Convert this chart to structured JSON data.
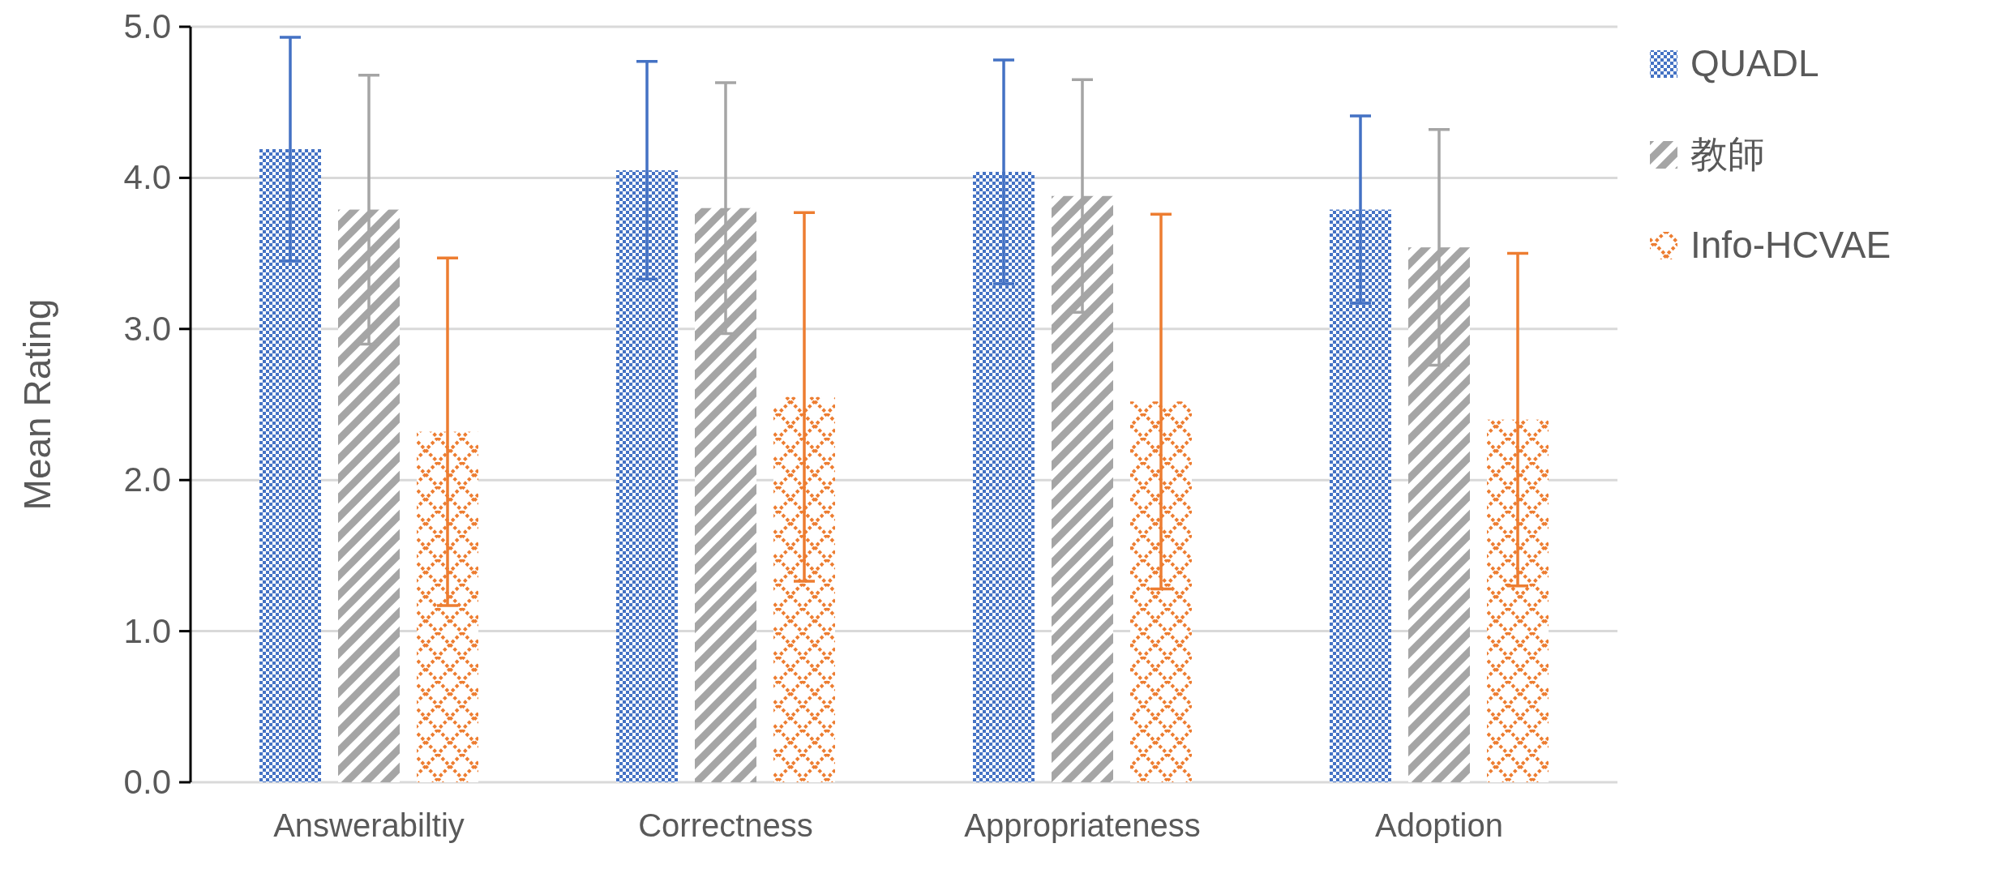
{
  "chart_data": {
    "type": "bar",
    "ylabel": "Mean Rating",
    "categories": [
      "Answerabiltiy",
      "Correctness",
      "Appropriateness",
      "Adoption"
    ],
    "series": [
      {
        "name": "QUADL",
        "color": "#4472c4",
        "values": [
          4.19,
          4.05,
          4.04,
          3.79
        ],
        "errors": [
          0.74,
          0.72,
          0.74,
          0.62
        ]
      },
      {
        "name": "教師",
        "color": "#a5a5a5",
        "values": [
          3.79,
          3.8,
          3.88,
          3.54
        ],
        "errors": [
          0.89,
          0.83,
          0.77,
          0.78
        ]
      },
      {
        "name": "Info-HCVAE",
        "color": "#ed7d31",
        "values": [
          2.32,
          2.55,
          2.52,
          2.4
        ],
        "errors": [
          1.15,
          1.22,
          1.24,
          1.1
        ]
      }
    ],
    "ylim": [
      0,
      5
    ],
    "yticks": [
      {
        "value": 0,
        "label": "0.0"
      },
      {
        "value": 1,
        "label": "1.0"
      },
      {
        "value": 2,
        "label": "2.0"
      },
      {
        "value": 3,
        "label": "3.0"
      },
      {
        "value": 4,
        "label": "4.0"
      },
      {
        "value": 5,
        "label": "5.0"
      }
    ],
    "grid": "y",
    "legend": "right"
  }
}
